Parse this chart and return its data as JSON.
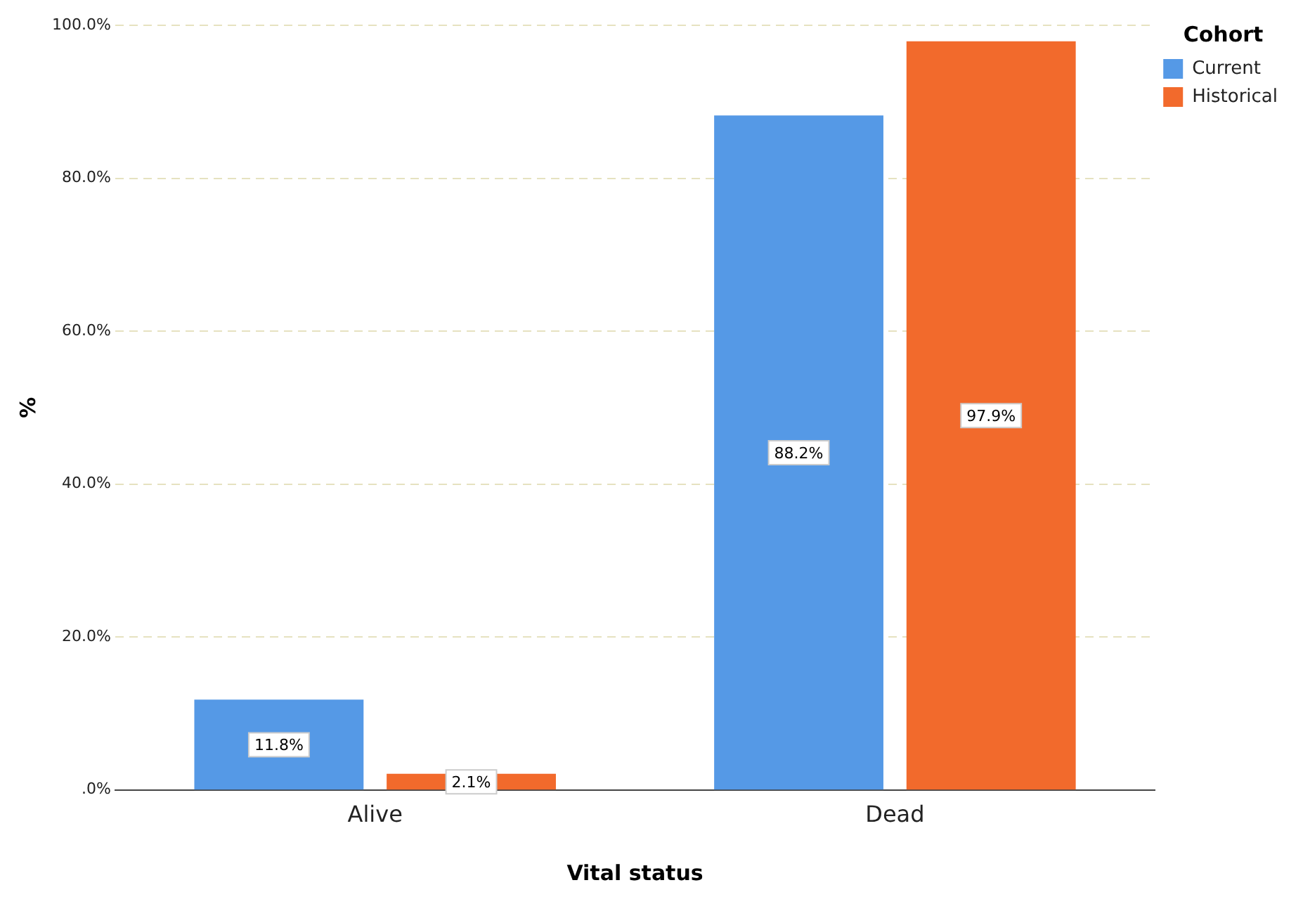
{
  "chart_data": {
    "type": "bar",
    "xlabel": "Vital status",
    "ylabel": "%",
    "legend_title": "Cohort",
    "categories": [
      "Alive",
      "Dead"
    ],
    "series": [
      {
        "name": "Current",
        "color": "#5599e6",
        "values": [
          11.8,
          88.2
        ],
        "value_labels": [
          "11.8%",
          "88.2%"
        ]
      },
      {
        "name": "Historical",
        "color": "#f26a2c",
        "values": [
          2.1,
          97.9
        ],
        "value_labels": [
          "2.1%",
          "97.9%"
        ]
      }
    ],
    "ylim": [
      0,
      100
    ],
    "yticks": [
      {
        "value": 0,
        "label": ".0%"
      },
      {
        "value": 20,
        "label": "20.0%"
      },
      {
        "value": 40,
        "label": "40.0%"
      },
      {
        "value": 60,
        "label": "60.0%"
      },
      {
        "value": 80,
        "label": "80.0%"
      },
      {
        "value": 100,
        "label": "100.0%"
      }
    ],
    "grid": "y",
    "legend": "top right"
  }
}
